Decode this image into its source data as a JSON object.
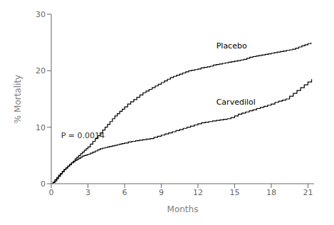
{
  "chart_data": {
    "type": "line",
    "line_style": "step",
    "xlabel": "Months",
    "ylabel": "% Mortality",
    "xlim": [
      0,
      21.5
    ],
    "ylim": [
      0,
      30
    ],
    "xticks": [
      0,
      3,
      6,
      9,
      12,
      15,
      18,
      21
    ],
    "yticks": [
      0,
      10,
      20,
      30
    ],
    "grid": false,
    "annotations": [
      {
        "text": "P = 0.0014",
        "x": 0.8,
        "y": 8.5
      }
    ],
    "series": [
      {
        "name": "Placebo",
        "color": "#000000",
        "label_x": 13.5,
        "label_y": 24.5,
        "x": [
          0.0,
          0.15,
          0.3,
          0.45,
          0.6,
          0.75,
          0.9,
          1.05,
          1.2,
          1.35,
          1.5,
          1.65,
          1.8,
          1.95,
          2.1,
          2.25,
          2.4,
          2.55,
          2.7,
          2.85,
          3.0,
          3.2,
          3.4,
          3.6,
          3.8,
          4.0,
          4.2,
          4.4,
          4.6,
          4.8,
          5.0,
          5.2,
          5.4,
          5.6,
          5.8,
          6.0,
          6.25,
          6.5,
          6.75,
          7.0,
          7.25,
          7.5,
          7.75,
          8.0,
          8.25,
          8.5,
          8.75,
          9.0,
          9.25,
          9.5,
          9.75,
          10.0,
          10.25,
          10.5,
          10.75,
          11.0,
          11.25,
          11.5,
          11.75,
          12.0,
          12.25,
          12.5,
          12.75,
          13.0,
          13.25,
          13.5,
          13.75,
          14.0,
          14.25,
          14.5,
          14.75,
          15.0,
          15.25,
          15.5,
          15.75,
          16.0,
          16.25,
          16.5,
          16.75,
          17.0,
          17.25,
          17.5,
          17.75,
          18.0,
          18.25,
          18.5,
          18.75,
          19.0,
          19.25,
          19.5,
          19.75,
          20.0,
          20.25,
          20.5,
          20.75,
          21.0,
          21.25
        ],
        "values": [
          0.0,
          0.3,
          0.7,
          1.1,
          1.5,
          1.8,
          2.2,
          2.5,
          2.8,
          3.1,
          3.4,
          3.7,
          4.0,
          4.4,
          4.7,
          5.0,
          5.3,
          5.6,
          5.9,
          6.2,
          6.5,
          7.0,
          7.5,
          8.0,
          8.5,
          9.0,
          9.5,
          10.0,
          10.5,
          11.0,
          11.5,
          12.0,
          12.4,
          12.8,
          13.2,
          13.6,
          14.1,
          14.5,
          14.9,
          15.3,
          15.7,
          16.1,
          16.4,
          16.7,
          17.0,
          17.3,
          17.6,
          17.9,
          18.2,
          18.5,
          18.8,
          19.0,
          19.2,
          19.4,
          19.6,
          19.8,
          20.0,
          20.1,
          20.2,
          20.3,
          20.5,
          20.6,
          20.7,
          20.8,
          21.0,
          21.1,
          21.2,
          21.3,
          21.4,
          21.5,
          21.6,
          21.7,
          21.8,
          21.9,
          22.0,
          22.2,
          22.4,
          22.5,
          22.6,
          22.7,
          22.8,
          22.9,
          23.0,
          23.1,
          23.2,
          23.3,
          23.4,
          23.5,
          23.6,
          23.7,
          23.8,
          24.0,
          24.2,
          24.4,
          24.6,
          24.8,
          25.0
        ]
      },
      {
        "name": "Carvedilol",
        "color": "#000000",
        "label_x": 13.5,
        "label_y": 14.5,
        "x": [
          0.0,
          0.15,
          0.3,
          0.45,
          0.6,
          0.75,
          0.9,
          1.05,
          1.2,
          1.35,
          1.5,
          1.65,
          1.8,
          1.95,
          2.1,
          2.25,
          2.4,
          2.55,
          2.7,
          2.85,
          3.0,
          3.2,
          3.4,
          3.6,
          3.8,
          4.0,
          4.2,
          4.4,
          4.6,
          4.8,
          5.0,
          5.2,
          5.4,
          5.6,
          5.8,
          6.0,
          6.3,
          6.6,
          6.9,
          7.2,
          7.5,
          7.8,
          8.1,
          8.4,
          8.7,
          9.0,
          9.3,
          9.6,
          9.9,
          10.2,
          10.5,
          10.8,
          11.1,
          11.4,
          11.7,
          12.0,
          12.3,
          12.6,
          12.9,
          13.2,
          13.5,
          13.8,
          14.1,
          14.4,
          14.7,
          15.0,
          15.3,
          15.6,
          15.9,
          16.2,
          16.5,
          16.8,
          17.1,
          17.4,
          17.7,
          18.0,
          18.3,
          18.6,
          18.9,
          19.2,
          19.5,
          19.8,
          20.1,
          20.4,
          20.7,
          21.0,
          21.3
        ],
        "values": [
          0.0,
          0.2,
          0.5,
          0.9,
          1.3,
          1.7,
          2.1,
          2.5,
          2.8,
          3.1,
          3.4,
          3.7,
          3.9,
          4.1,
          4.3,
          4.5,
          4.7,
          4.9,
          5.0,
          5.1,
          5.2,
          5.4,
          5.6,
          5.8,
          6.0,
          6.2,
          6.3,
          6.4,
          6.5,
          6.6,
          6.7,
          6.8,
          6.9,
          7.0,
          7.1,
          7.2,
          7.4,
          7.5,
          7.6,
          7.7,
          7.8,
          7.9,
          8.0,
          8.2,
          8.4,
          8.6,
          8.8,
          9.0,
          9.2,
          9.4,
          9.6,
          9.8,
          10.0,
          10.2,
          10.4,
          10.6,
          10.8,
          10.9,
          11.0,
          11.1,
          11.2,
          11.3,
          11.4,
          11.5,
          11.7,
          12.0,
          12.3,
          12.5,
          12.7,
          12.9,
          13.1,
          13.3,
          13.5,
          13.7,
          13.9,
          14.1,
          14.4,
          14.6,
          14.8,
          15.0,
          15.5,
          16.0,
          16.5,
          17.0,
          17.5,
          18.0,
          18.5
        ]
      }
    ]
  }
}
